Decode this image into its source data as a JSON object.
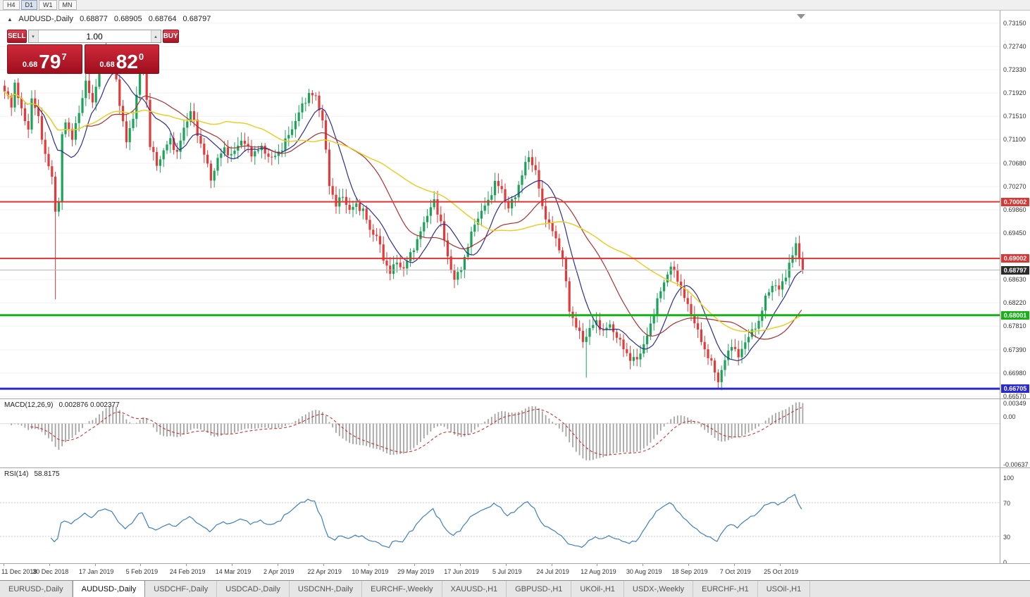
{
  "toolbar": {
    "timeframes": [
      {
        "label": "H4",
        "active": false
      },
      {
        "label": "D1",
        "active": true
      },
      {
        "label": "W1",
        "active": false
      },
      {
        "label": "MN",
        "active": false
      }
    ]
  },
  "symbol_info": {
    "marker": "▲",
    "title": "AUDUSD-,Daily",
    "open": "0.68877",
    "high": "0.68905",
    "low": "0.68764",
    "close": "0.68797"
  },
  "trade_panel": {
    "sell_label": "SELL",
    "buy_label": "BUY",
    "volume": "1.00",
    "spin_down": "▾",
    "spin_up": "▴",
    "sell_price": {
      "prefix": "0.68",
      "big": "79",
      "sup": "7"
    },
    "buy_price": {
      "prefix": "0.68",
      "big": "82",
      "sup": "0"
    }
  },
  "price_scale": {
    "ticks": [
      "0.73150",
      "0.72740",
      "0.72330",
      "0.71920",
      "0.71510",
      "0.71100",
      "0.70680",
      "0.70270",
      "0.69860",
      "0.69450",
      "0.68630",
      "0.68220",
      "0.67810",
      "0.67390",
      "0.66980",
      "0.66570"
    ],
    "badges": [
      {
        "text": "0.70002",
        "color": "#dd3434"
      },
      {
        "text": "0.69002",
        "color": "#dd3434"
      },
      {
        "text": "0.68797",
        "color": "#2b2b2b"
      },
      {
        "text": "0.68001",
        "color": "#17b117"
      },
      {
        "text": "0.66705",
        "color": "#2929cf"
      }
    ]
  },
  "hlines": [
    {
      "price": 0.70002,
      "color": "#dd3434",
      "width": 2
    },
    {
      "price": 0.69002,
      "color": "#dd3434",
      "width": 2
    },
    {
      "price": 0.68001,
      "color": "#17b117",
      "width": 3
    },
    {
      "price": 0.66705,
      "color": "#2929cf",
      "width": 3
    },
    {
      "price": 0.68797,
      "color": "#b5b5b5",
      "width": 1
    }
  ],
  "indicators": {
    "macd": {
      "label": "MACD(12,26,9)",
      "values": "0.002876 0.002377",
      "scale": [
        "0.00349",
        "0.00",
        "-0.00637"
      ],
      "hist_color": "#a4a4a4",
      "signal_color": "#cc2222"
    },
    "rsi": {
      "label": "RSI(14)",
      "value": "58.8175",
      "scale": [
        "100",
        "70",
        "30",
        "0"
      ],
      "levels": [
        70,
        30
      ],
      "line_color": "#3e7fbf"
    }
  },
  "chart_data": {
    "type": "candlestick",
    "symbol": "AUDUSD",
    "timeframe": "Daily",
    "bar_count": 237,
    "price_range_visible": [
      0.66557,
      0.7337
    ],
    "last_ohlc": {
      "open": 0.68877,
      "high": 0.68905,
      "low": 0.68764,
      "close": 0.68797
    },
    "up_color": "#1aa457",
    "down_color": "#e23b3b",
    "ma_lines": [
      {
        "period": 10,
        "color": "#2d2d8f",
        "width": 1.2
      },
      {
        "period": 25,
        "color": "#a83232",
        "width": 1.2
      },
      {
        "period": 50,
        "color": "#e8cf2a",
        "width": 1.5
      }
    ],
    "close_anchors": [
      [
        0,
        0.7195
      ],
      [
        2,
        0.717
      ],
      [
        3,
        0.721
      ],
      [
        5,
        0.716
      ],
      [
        7,
        0.713
      ],
      [
        8,
        0.718
      ],
      [
        10,
        0.715
      ],
      [
        12,
        0.708
      ],
      [
        14,
        0.7045
      ],
      [
        15,
        0.6985
      ],
      [
        16,
        0.7
      ],
      [
        17,
        0.7115
      ],
      [
        18,
        0.7145
      ],
      [
        20,
        0.711
      ],
      [
        22,
        0.716
      ],
      [
        24,
        0.721
      ],
      [
        26,
        0.7175
      ],
      [
        28,
        0.724
      ],
      [
        30,
        0.727
      ],
      [
        32,
        0.725
      ],
      [
        34,
        0.7175
      ],
      [
        36,
        0.7105
      ],
      [
        38,
        0.715
      ],
      [
        40,
        0.723
      ],
      [
        41,
        0.7245
      ],
      [
        42,
        0.718
      ],
      [
        43,
        0.71
      ],
      [
        45,
        0.7065
      ],
      [
        47,
        0.709
      ],
      [
        49,
        0.711
      ],
      [
        51,
        0.7085
      ],
      [
        53,
        0.713
      ],
      [
        55,
        0.716
      ],
      [
        57,
        0.712
      ],
      [
        59,
        0.7085
      ],
      [
        61,
        0.704
      ],
      [
        63,
        0.7075
      ],
      [
        65,
        0.7095
      ],
      [
        67,
        0.708
      ],
      [
        70,
        0.711
      ],
      [
        73,
        0.7085
      ],
      [
        76,
        0.7095
      ],
      [
        79,
        0.7075
      ],
      [
        82,
        0.7095
      ],
      [
        85,
        0.713
      ],
      [
        88,
        0.717
      ],
      [
        90,
        0.719
      ],
      [
        92,
        0.7185
      ],
      [
        94,
        0.7145
      ],
      [
        96,
        0.703
      ],
      [
        98,
        0.6995
      ],
      [
        100,
        0.701
      ],
      [
        102,
        0.6985
      ],
      [
        104,
        0.6995
      ],
      [
        106,
        0.6985
      ],
      [
        108,
        0.695
      ],
      [
        110,
        0.694
      ],
      [
        112,
        0.69
      ],
      [
        114,
        0.6875
      ],
      [
        116,
        0.6895
      ],
      [
        118,
        0.688
      ],
      [
        120,
        0.691
      ],
      [
        122,
        0.693
      ],
      [
        124,
        0.6965
      ],
      [
        126,
        0.699
      ],
      [
        127,
        0.7
      ],
      [
        129,
        0.6965
      ],
      [
        131,
        0.69
      ],
      [
        133,
        0.6865
      ],
      [
        135,
        0.688
      ],
      [
        137,
        0.6925
      ],
      [
        139,
        0.696
      ],
      [
        141,
        0.6985
      ],
      [
        143,
        0.7
      ],
      [
        145,
        0.7035
      ],
      [
        147,
        0.702
      ],
      [
        149,
        0.699
      ],
      [
        151,
        0.701
      ],
      [
        153,
        0.705
      ],
      [
        155,
        0.708
      ],
      [
        157,
        0.7055
      ],
      [
        159,
        0.699
      ],
      [
        161,
        0.696
      ],
      [
        163,
        0.6935
      ],
      [
        165,
        0.69
      ],
      [
        167,
        0.681
      ],
      [
        169,
        0.678
      ],
      [
        171,
        0.6755
      ],
      [
        173,
        0.6775
      ],
      [
        175,
        0.679
      ],
      [
        177,
        0.677
      ],
      [
        179,
        0.6785
      ],
      [
        181,
        0.676
      ],
      [
        183,
        0.6745
      ],
      [
        185,
        0.672
      ],
      [
        187,
        0.6725
      ],
      [
        189,
        0.6745
      ],
      [
        191,
        0.6785
      ],
      [
        193,
        0.6825
      ],
      [
        195,
        0.686
      ],
      [
        197,
        0.6885
      ],
      [
        199,
        0.6865
      ],
      [
        201,
        0.683
      ],
      [
        203,
        0.6805
      ],
      [
        205,
        0.677
      ],
      [
        207,
        0.674
      ],
      [
        209,
        0.6715
      ],
      [
        211,
        0.6685
      ],
      [
        213,
        0.672
      ],
      [
        215,
        0.675
      ],
      [
        217,
        0.6725
      ],
      [
        219,
        0.6755
      ],
      [
        221,
        0.677
      ],
      [
        223,
        0.679
      ],
      [
        225,
        0.683
      ],
      [
        227,
        0.6855
      ],
      [
        229,
        0.6845
      ],
      [
        231,
        0.6872
      ],
      [
        233,
        0.6905
      ],
      [
        234,
        0.6928
      ],
      [
        235,
        0.6902
      ],
      [
        236,
        0.68797
      ]
    ],
    "low_overrides": {
      "15": 0.6828,
      "172": 0.669,
      "211": 0.66705
    },
    "high_overrides": {
      "30": 0.7292,
      "155": 0.709,
      "234": 0.6938
    }
  },
  "date_axis": {
    "labels": [
      "11 Dec 2018",
      "30 Dec 2018",
      "17 Jan 2019",
      "5 Feb 2019",
      "24 Feb 2019",
      "14 Mar 2019",
      "2 Apr 2019",
      "22 Apr 2019",
      "10 May 2019",
      "29 May 2019",
      "17 Jun 2019",
      "5 Jul 2019",
      "24 Jul 2019",
      "12 Aug 2019",
      "30 Aug 2019",
      "18 Sep 2019",
      "7 Oct 2019",
      "25 Oct 2019"
    ]
  },
  "tabs": [
    {
      "label": "EURUSD-,Daily",
      "active": false
    },
    {
      "label": "AUDUSD-,Daily",
      "active": true
    },
    {
      "label": "USDCHF-,Daily",
      "active": false
    },
    {
      "label": "USDCAD-,Daily",
      "active": false
    },
    {
      "label": "USDCNH-,Daily",
      "active": false
    },
    {
      "label": "EURCHF-,Weekly",
      "active": false
    },
    {
      "label": "XAUUSD-,H1",
      "active": false
    },
    {
      "label": "GBPUSD-,H1",
      "active": false
    },
    {
      "label": "UKOil-,H1",
      "active": false
    },
    {
      "label": "USDX-,Weekly",
      "active": false
    },
    {
      "label": "EURCHF-,H1",
      "active": false
    },
    {
      "label": "USOil-,H1",
      "active": false
    }
  ]
}
